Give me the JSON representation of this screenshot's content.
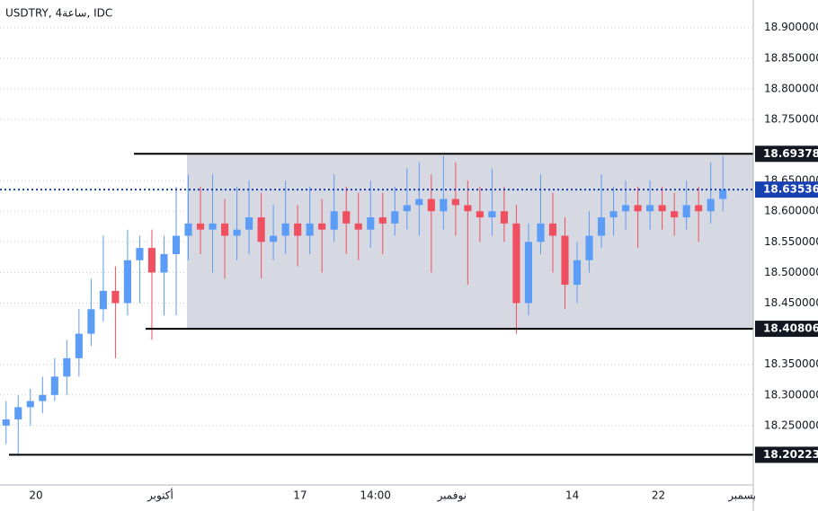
{
  "chart_data": {
    "type": "candlestick",
    "title": "USDTRY, 4ساعة, IDC",
    "up_color": "#5b9cf6",
    "down_color": "#ef4f5f",
    "open": [
      18.25,
      18.26,
      18.28,
      18.29,
      18.3,
      18.33,
      18.36,
      18.4,
      18.44,
      18.47,
      18.45,
      18.52,
      18.54,
      18.5,
      18.53,
      18.56,
      18.58,
      18.57,
      18.58,
      18.56,
      18.57,
      18.59,
      18.55,
      18.56,
      18.58,
      18.56,
      18.58,
      18.57,
      18.6,
      18.58,
      18.57,
      18.59,
      18.58,
      18.6,
      18.61,
      18.62,
      18.6,
      18.62,
      18.61,
      18.6,
      18.59,
      18.6,
      18.58,
      18.45,
      18.55,
      18.58,
      18.56,
      18.48,
      18.52,
      18.56,
      18.59,
      18.6,
      18.61,
      18.6,
      18.61,
      18.6,
      18.59,
      18.61,
      18.6,
      18.62
    ],
    "high": [
      18.29,
      18.3,
      18.31,
      18.33,
      18.36,
      18.39,
      18.44,
      18.49,
      18.56,
      18.51,
      18.57,
      18.56,
      18.57,
      18.56,
      18.64,
      18.66,
      18.64,
      18.66,
      18.62,
      18.64,
      18.65,
      18.63,
      18.61,
      18.65,
      18.61,
      18.64,
      18.62,
      18.66,
      18.64,
      18.63,
      18.65,
      18.63,
      18.64,
      18.67,
      18.68,
      18.66,
      18.69,
      18.68,
      18.65,
      18.64,
      18.67,
      18.64,
      18.61,
      18.58,
      18.66,
      18.63,
      18.59,
      18.55,
      18.6,
      18.66,
      18.64,
      18.65,
      18.64,
      18.65,
      18.64,
      18.63,
      18.65,
      18.64,
      18.68,
      18.69
    ],
    "low": [
      18.22,
      18.2,
      18.25,
      18.27,
      18.29,
      18.3,
      18.33,
      18.38,
      18.42,
      18.36,
      18.43,
      18.45,
      18.39,
      18.43,
      18.43,
      18.52,
      18.53,
      18.5,
      18.49,
      18.52,
      18.53,
      18.49,
      18.52,
      18.53,
      18.51,
      18.53,
      18.5,
      18.55,
      18.53,
      18.52,
      18.54,
      18.53,
      18.56,
      18.57,
      18.56,
      18.5,
      18.57,
      18.56,
      18.48,
      18.55,
      18.56,
      18.55,
      18.4,
      18.43,
      18.53,
      18.5,
      18.44,
      18.45,
      18.5,
      18.54,
      18.56,
      18.57,
      18.54,
      18.57,
      18.57,
      18.56,
      18.57,
      18.55,
      18.58,
      18.6
    ],
    "close": [
      18.26,
      18.28,
      18.29,
      18.3,
      18.33,
      18.36,
      18.4,
      18.44,
      18.47,
      18.45,
      18.52,
      18.54,
      18.5,
      18.53,
      18.56,
      18.58,
      18.57,
      18.58,
      18.56,
      18.57,
      18.59,
      18.55,
      18.56,
      18.58,
      18.56,
      18.58,
      18.57,
      18.6,
      18.58,
      18.57,
      18.59,
      18.58,
      18.6,
      18.61,
      18.62,
      18.6,
      18.62,
      18.61,
      18.6,
      18.59,
      18.6,
      18.58,
      18.45,
      18.55,
      18.58,
      18.56,
      18.48,
      18.52,
      18.56,
      18.59,
      18.6,
      18.61,
      18.6,
      18.61,
      18.6,
      18.59,
      18.61,
      18.6,
      18.62,
      18.635
    ],
    "xlim": [
      -0.5,
      61.5
    ],
    "xticks": [
      {
        "value": 2.46,
        "label": "20"
      },
      {
        "value": 12.7,
        "label": "أكتوبر"
      },
      {
        "value": 24.2,
        "label": "17"
      },
      {
        "value": 30.4,
        "label": "14:00"
      },
      {
        "value": 36.7,
        "label": "نوفمبر"
      },
      {
        "value": 46.6,
        "label": "14"
      },
      {
        "value": 53.7,
        "label": "22"
      },
      {
        "value": 60.8,
        "label": "ديسمبر"
      }
    ],
    "ylim": [
      18.153,
      18.945
    ],
    "yticks": [
      {
        "value": 18.25,
        "label": "18.250000"
      },
      {
        "value": 18.3,
        "label": "18.300000"
      },
      {
        "value": 18.35,
        "label": "18.350000"
      },
      {
        "value": 18.45,
        "label": "18.450000"
      },
      {
        "value": 18.5,
        "label": "18.500000"
      },
      {
        "value": 18.55,
        "label": "18.550000"
      },
      {
        "value": 18.6,
        "label": "18.600000"
      },
      {
        "value": 18.65,
        "label": "18.650000"
      },
      {
        "value": 18.75,
        "label": "18.750000"
      },
      {
        "value": 18.8,
        "label": "18.800000"
      },
      {
        "value": 18.85,
        "label": "18.850000"
      },
      {
        "value": 18.9,
        "label": "18.900000"
      }
    ],
    "grid": true,
    "levels": [
      {
        "price": {
          "value": 18.69378,
          "label": "18.693780"
        },
        "style": "solid",
        "color": "#000000"
      },
      {
        "price": {
          "value": 18.63536,
          "label": "18.635360"
        },
        "style": "dotted",
        "color": "#1740b0"
      },
      {
        "price": 18.408065,
        "style": "solid",
        "color": "#000000"
      },
      {
        "price": 18.202233,
        "style": "solid",
        "color": "#000000"
      }
    ]
  }
}
